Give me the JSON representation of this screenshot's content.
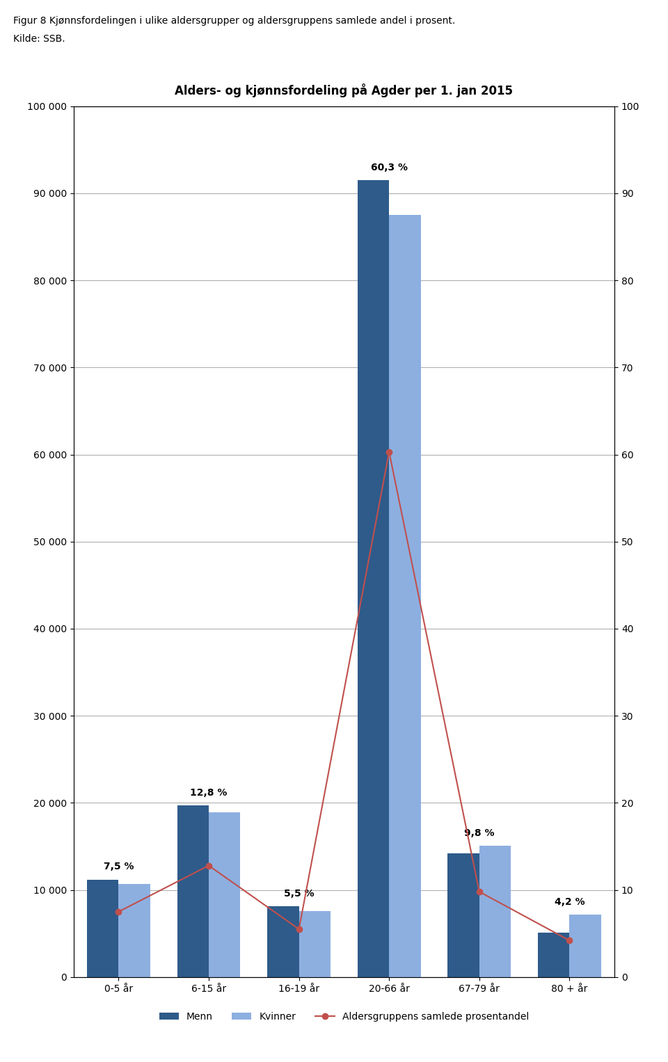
{
  "chart_data": {
    "type": "bar",
    "title": "Alders- og kjønnsfordeling på Agder per 1. jan 2015",
    "subtitle": "Figur 8 Kjønnsfordelingen i ulike aldersgrupper og aldersgruppens samlede andel i prosent.",
    "annotations": [
      "Kilde: SSB."
    ],
    "categories": [
      "0-5 år",
      "6-15 år",
      "16-19 år",
      "20-66 år",
      "67-79 år",
      "80 + år"
    ],
    "series": [
      {
        "name": "Menn",
        "color": "#2E5B8A",
        "values": [
          11200,
          19700,
          8100,
          91500,
          14200,
          5100
        ]
      },
      {
        "name": "Kvinner",
        "color": "#8DAFE0",
        "values": [
          10700,
          18900,
          7600,
          87500,
          15100,
          7200
        ]
      },
      {
        "name": "Aldersgruppens samlede prosentandel",
        "type": "line",
        "axis": "y2",
        "marker": "o",
        "color": "#C0504D",
        "values": [
          7.5,
          12.8,
          5.5,
          60.3,
          9.8,
          4.2
        ],
        "value_labels": [
          "7,5 %",
          "12,8 %",
          "5,5 %",
          "60,3 %",
          "9,8 %",
          "4,2 %"
        ],
        "data_labels": true
      }
    ],
    "ylim": [
      0,
      100000
    ],
    "yticks": [
      0,
      {
        "value": 10000,
        "label": "10 000"
      },
      {
        "value": 20000,
        "label": "20 000"
      },
      {
        "value": 30000,
        "label": "30 000"
      },
      {
        "value": 40000,
        "label": "40 000"
      },
      {
        "value": 50000,
        "label": "50 000"
      },
      {
        "value": 60000,
        "label": "60 000"
      },
      {
        "value": 70000,
        "label": "70 000"
      },
      {
        "value": 80000,
        "label": "80 000"
      },
      {
        "value": 90000,
        "label": "90 000"
      },
      {
        "value": 100000,
        "label": "100 000"
      }
    ],
    "y2lim": [
      0,
      100
    ],
    "y2ticks": [
      0,
      10,
      20,
      30,
      40,
      50,
      60,
      70,
      80,
      90,
      100
    ],
    "grid": true,
    "legend": "below"
  }
}
